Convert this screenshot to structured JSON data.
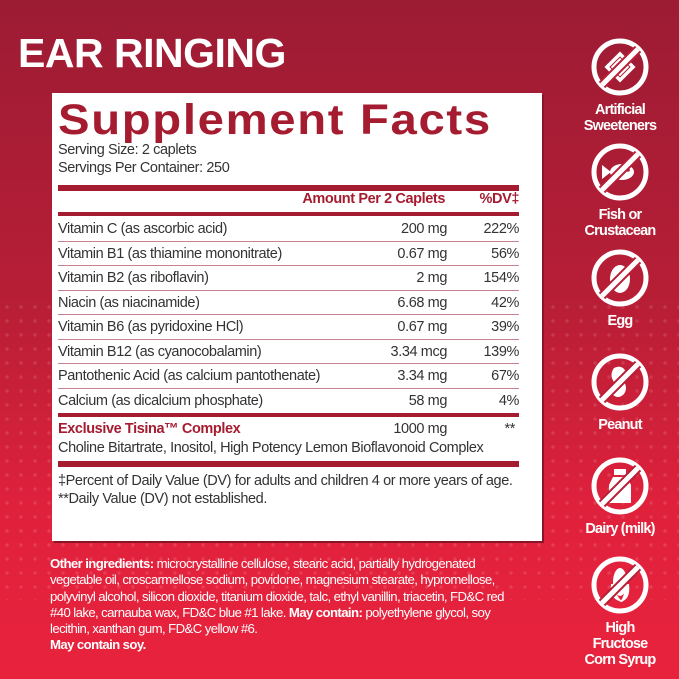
{
  "title": "EAR RINGING",
  "facts": {
    "heading": "Supplement Facts",
    "serving_size": "Serving Size: 2 caplets",
    "servings_per_container": "Servings Per Container: 250",
    "col_amount": "Amount Per 2 Caplets",
    "col_dv": "%DV‡",
    "rows": [
      {
        "name": "Vitamin C (as ascorbic acid)",
        "amount": "200 mg",
        "dv": "222%"
      },
      {
        "name": "Vitamin B1 (as thiamine mononitrate)",
        "amount": "0.67 mg",
        "dv": "56%"
      },
      {
        "name": "Vitamin B2 (as riboflavin)",
        "amount": "2 mg",
        "dv": "154%"
      },
      {
        "name": "Niacin (as niacinamide)",
        "amount": "6.68 mg",
        "dv": "42%"
      },
      {
        "name": "Vitamin B6 (as pyridoxine HCl)",
        "amount": "0.67 mg",
        "dv": "39%"
      },
      {
        "name": "Vitamin B12 (as cyanocobalamin)",
        "amount": "3.34 mcg",
        "dv": "139%"
      },
      {
        "name": "Pantothenic Acid (as calcium pantothenate)",
        "amount": "3.34 mg",
        "dv": "67%"
      },
      {
        "name": "Calcium (as dicalcium phosphate)",
        "amount": "58 mg",
        "dv": "4%"
      }
    ],
    "complex": {
      "name": "Exclusive Tisina™ Complex",
      "amount": "1000 mg",
      "dv": "**",
      "ingredients": "Choline Bitartrate, Inositol, High Potency Lemon Bioflavonoid Complex"
    },
    "footnote1": "‡Percent of Daily Value (DV) for adults and children 4 or more years of age.",
    "footnote2": "**Daily Value (DV) not established."
  },
  "other": {
    "label1": "Other ingredients:",
    "text1": " microcrystalline cellulose, stearic acid, partially hydrogenated vegetable oil, croscarmellose sodium, povidone, magnesium stearate, hypromellose, polyvinyl alcohol, silicon dioxide, titanium dioxide, talc, ethyl vanillin, triacetin, FD&C red #40 lake, carnauba wax, FD&C blue #1 lake. ",
    "label2": "May contain:",
    "text2": " polyethylene glycol, soy lecithin, xanthan gum, FD&C yellow #6.",
    "label3": "May contain soy."
  },
  "free_from": [
    {
      "icon": "artificial-sweeteners-icon",
      "label": "Artificial Sweeteners"
    },
    {
      "icon": "fish-icon",
      "label": "Fish or Crustacean"
    },
    {
      "icon": "egg-icon",
      "label": "Egg"
    },
    {
      "icon": "peanut-icon",
      "label": "Peanut"
    },
    {
      "icon": "milk-bottle-icon",
      "label": "Dairy (milk)"
    },
    {
      "icon": "corn-icon",
      "label": "High Fructose Corn Syrup"
    }
  ],
  "colors": {
    "brand_red": "#a51c30",
    "background_top": "#9c1c34",
    "background_bottom": "#e8223d"
  }
}
